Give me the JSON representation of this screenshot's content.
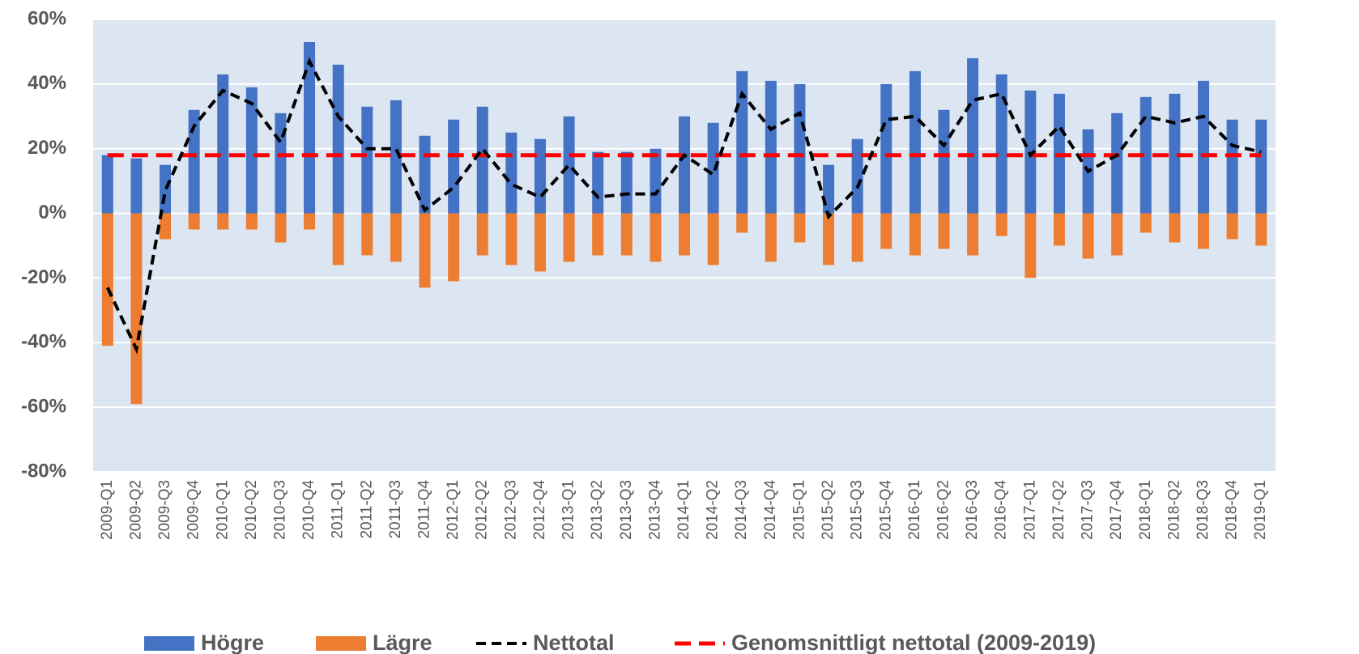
{
  "chart_data": {
    "type": "bar-line",
    "categories": [
      "2009-Q1",
      "2009-Q2",
      "2009-Q3",
      "2009-Q4",
      "2010-Q1",
      "2010-Q2",
      "2010-Q3",
      "2010-Q4",
      "2011-Q1",
      "2011-Q2",
      "2011-Q3",
      "2011-Q4",
      "2012-Q1",
      "2012-Q2",
      "2012-Q3",
      "2012-Q4",
      "2013-Q1",
      "2013-Q2",
      "2013-Q3",
      "2013-Q4",
      "2014-Q1",
      "2014-Q2",
      "2014-Q3",
      "2014-Q4",
      "2015-Q1",
      "2015-Q2",
      "2015-Q3",
      "2015-Q4",
      "2016-Q1",
      "2016-Q2",
      "2016-Q3",
      "2016-Q4",
      "2017-Q1",
      "2017-Q2",
      "2017-Q3",
      "2017-Q4",
      "2018-Q1",
      "2018-Q2",
      "2018-Q3",
      "2018-Q4",
      "2019-Q1"
    ],
    "series": [
      {
        "name": "Högre",
        "type": "bar",
        "color": "#4472c4",
        "values": [
          18,
          17,
          15,
          32,
          43,
          39,
          31,
          53,
          46,
          33,
          35,
          24,
          29,
          33,
          25,
          23,
          30,
          19,
          19,
          20,
          30,
          28,
          44,
          41,
          40,
          15,
          23,
          40,
          44,
          32,
          48,
          43,
          38,
          37,
          26,
          31,
          36,
          37,
          41,
          29,
          29
        ]
      },
      {
        "name": "Lägre",
        "type": "bar",
        "color": "#ed7d31",
        "values": [
          -41,
          -59,
          -8,
          -5,
          -5,
          -5,
          -9,
          -5,
          -16,
          -13,
          -15,
          -23,
          -21,
          -13,
          -16,
          -18,
          -15,
          -13,
          -13,
          -15,
          -13,
          -16,
          -6,
          -15,
          -9,
          -16,
          -15,
          -11,
          -13,
          -11,
          -13,
          -7,
          -20,
          -10,
          -14,
          -13,
          -6,
          -9,
          -11,
          -8,
          -10
        ]
      },
      {
        "name": "Nettotal",
        "type": "line",
        "color": "#000000",
        "values": [
          -23,
          -42,
          7,
          27,
          38,
          34,
          22,
          47,
          30,
          20,
          20,
          1,
          8,
          20,
          9,
          5,
          15,
          5,
          6,
          6,
          18,
          12,
          37,
          26,
          31,
          -1,
          8,
          29,
          30,
          21,
          35,
          37,
          18,
          27,
          13,
          18,
          30,
          28,
          30,
          21,
          19
        ]
      }
    ],
    "average": {
      "name": "Genomsnittligt nettotal (2009-2019)",
      "color": "#ff0000",
      "value": 18
    },
    "ylim": [
      -80,
      60
    ],
    "yticks": [
      {
        "value": -80,
        "label": "-80%"
      },
      {
        "value": -60,
        "label": "-60%"
      },
      {
        "value": -40,
        "label": "-40%"
      },
      {
        "value": -20,
        "label": "-20%"
      },
      {
        "value": 0,
        "label": "0%"
      },
      {
        "value": 20,
        "label": "20%"
      },
      {
        "value": 40,
        "label": "40%"
      },
      {
        "value": 60,
        "label": "60%"
      }
    ],
    "grid": true
  }
}
